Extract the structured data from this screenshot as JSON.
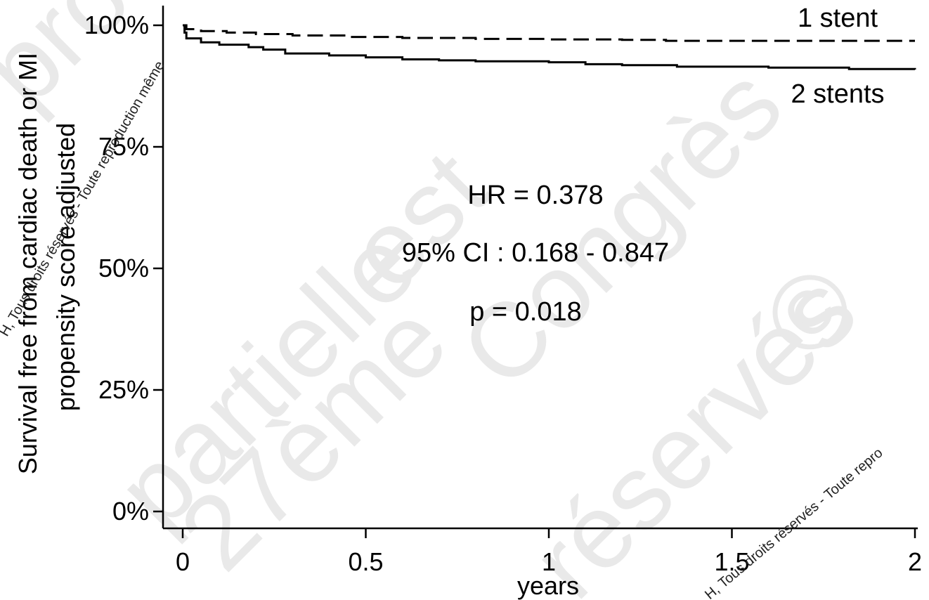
{
  "chart_data": {
    "type": "line",
    "title": "",
    "xlabel": "years",
    "ylabel_lines": [
      "Survival free from cardiac death or MI",
      "propensity score adjusted"
    ],
    "xlim": [
      0,
      2
    ],
    "ylim": [
      0,
      100
    ],
    "x_ticks": [
      {
        "value": 0,
        "label": "0"
      },
      {
        "value": 0.5,
        "label": "0.5"
      },
      {
        "value": 1,
        "label": "1"
      },
      {
        "value": 1.5,
        "label": "1.5"
      },
      {
        "value": 2,
        "label": "2"
      }
    ],
    "y_ticks": [
      {
        "value": 0,
        "label": "0%"
      },
      {
        "value": 25,
        "label": "25%"
      },
      {
        "value": 50,
        "label": "50%"
      },
      {
        "value": 75,
        "label": "75%"
      },
      {
        "value": 100,
        "label": "100%"
      }
    ],
    "series": [
      {
        "name": "1 stent",
        "style": "dashed",
        "color": "#000000",
        "points": [
          [
            0,
            100
          ],
          [
            0.01,
            99.2
          ],
          [
            0.05,
            98.8
          ],
          [
            0.12,
            98.5
          ],
          [
            0.2,
            98.2
          ],
          [
            0.3,
            97.9
          ],
          [
            0.45,
            97.6
          ],
          [
            0.6,
            97.4
          ],
          [
            0.8,
            97.2
          ],
          [
            1.0,
            97.1
          ],
          [
            1.2,
            97.0
          ],
          [
            1.32,
            96.8
          ],
          [
            1.6,
            96.8
          ],
          [
            2.0,
            96.8
          ]
        ]
      },
      {
        "name": "2 stents",
        "style": "solid",
        "color": "#000000",
        "points": [
          [
            0,
            100
          ],
          [
            0.005,
            98.5
          ],
          [
            0.01,
            97.3
          ],
          [
            0.05,
            96.5
          ],
          [
            0.1,
            96.0
          ],
          [
            0.18,
            95.5
          ],
          [
            0.22,
            95.0
          ],
          [
            0.28,
            94.2
          ],
          [
            0.4,
            93.8
          ],
          [
            0.5,
            93.4
          ],
          [
            0.6,
            93.0
          ],
          [
            0.7,
            92.8
          ],
          [
            0.8,
            92.6
          ],
          [
            1.0,
            92.4
          ],
          [
            1.1,
            92.0
          ],
          [
            1.2,
            91.8
          ],
          [
            1.35,
            91.5
          ],
          [
            1.6,
            91.3
          ],
          [
            1.82,
            91.0
          ],
          [
            2.0,
            90.9
          ]
        ]
      }
    ],
    "series_labels": [
      {
        "text": "1 stent",
        "series": 0
      },
      {
        "text": "2 stents",
        "series": 1
      }
    ],
    "annotations": [
      "HR = 0.378",
      "95% CI : 0.168 - 0.847",
      "p = 0.018"
    ],
    "grid": false,
    "legend": "inline labels"
  },
  "watermarks": {
    "big": [
      {
        "text": "produ"
      },
      {
        "text": "partielle"
      },
      {
        "text": "est"
      },
      {
        "text": "27ème"
      },
      {
        "text": "Congrès"
      },
      {
        "text": "réservés"
      },
      {
        "text": "©"
      }
    ],
    "small": [
      {
        "text": "H, Tous droits réservés - Toute reproduction même"
      },
      {
        "text": "H, Tous droits réservés - Toute repro"
      }
    ]
  }
}
